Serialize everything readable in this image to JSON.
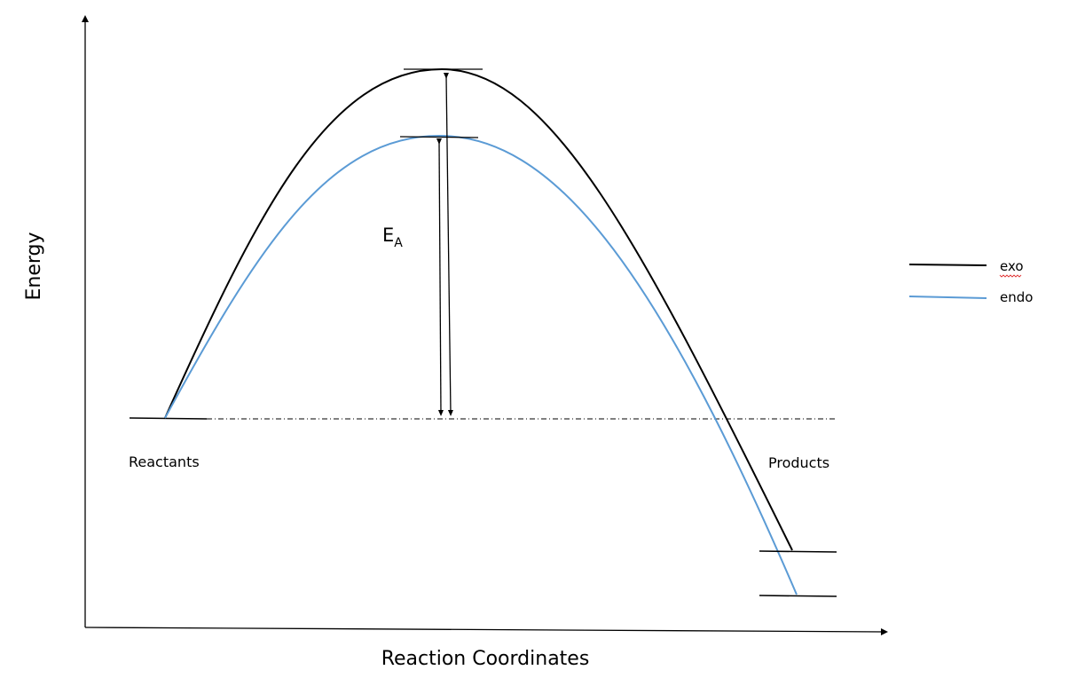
{
  "axes": {
    "y_label": "Energy",
    "x_label": "Reaction Coordinates"
  },
  "labels": {
    "reactants": "Reactants",
    "products": "Products",
    "activation_energy_main": "E",
    "activation_energy_sub": "A"
  },
  "legend": {
    "items": [
      {
        "label": "exo",
        "color": "#000000"
      },
      {
        "label": "endo",
        "color": "#5b9bd5"
      }
    ]
  },
  "colors": {
    "exo": "#000000",
    "endo": "#5b9bd5",
    "axis": "#000000"
  }
}
